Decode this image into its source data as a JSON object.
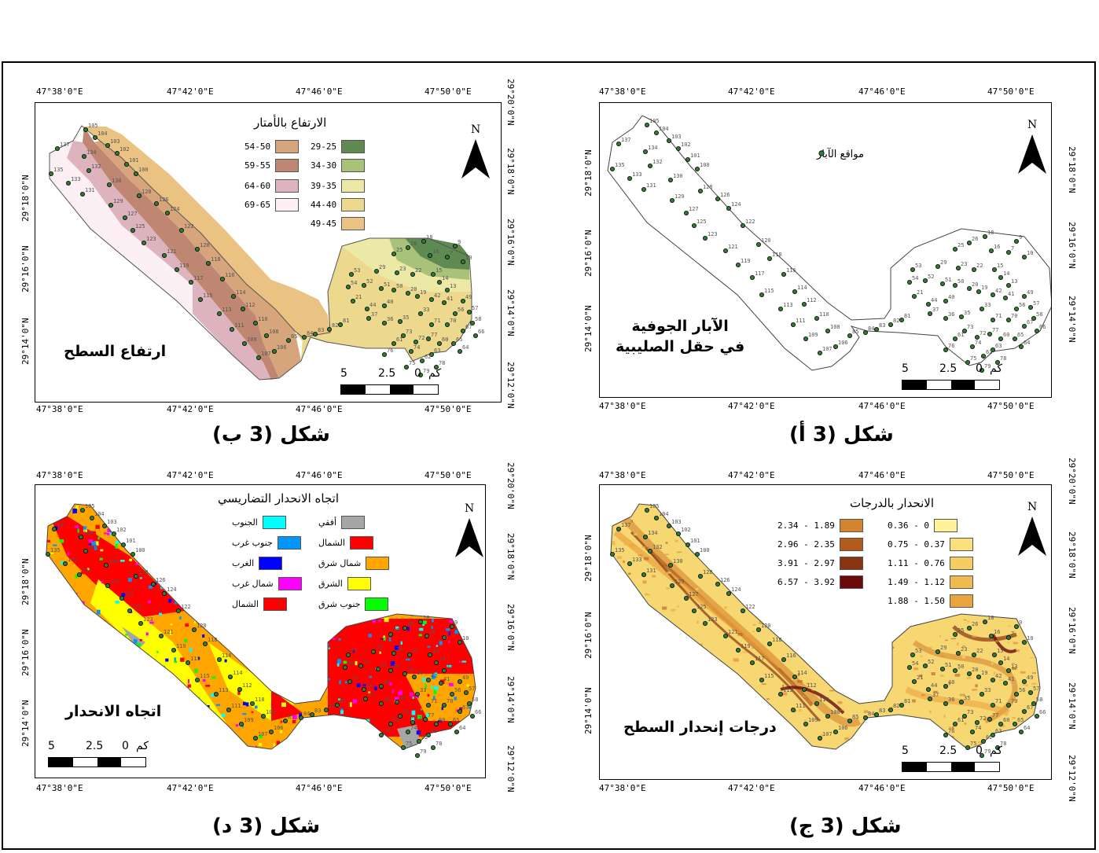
{
  "coords": {
    "lon": [
      "47°38'0\"E",
      "47°42'0\"E",
      "47°46'0\"E",
      "47°50'0\"E"
    ],
    "lat_left": [
      "29°18'0\"N",
      "29°16'0\"N",
      "29°14'0\"N"
    ],
    "lat_right": [
      "29°20'0\"N",
      "29°18'0\"N",
      "29°16'0\"N",
      "29°14'0\"N",
      "29°12'0\"N"
    ]
  },
  "panels": {
    "a": {
      "figure_title": "شكل (3 أ)",
      "caption_line1": "الآبار الجوفية",
      "caption_line2": "في حقل الصليبية",
      "well_legend": "مواقع الآبار",
      "north": "N",
      "scale": {
        "v5": "5",
        "v25": "2.5",
        "v0": "0",
        "unit": "كم"
      }
    },
    "b": {
      "figure_title": "شكل (3 ب)",
      "caption": "ارتفاع السطح",
      "legend_title": "الارتفاع بالأمتار",
      "north": "N",
      "scale": {
        "v5": "5",
        "v25": "2.5",
        "v0": "0",
        "unit": "كم"
      },
      "legend_right": [
        {
          "label": "29-25",
          "color": "#5f8a52"
        },
        {
          "label": "34-30",
          "color": "#a9c27a"
        },
        {
          "label": "39-35",
          "color": "#ece8a6"
        },
        {
          "label": "44-40",
          "color": "#ecd98e"
        },
        {
          "label": "49-45",
          "color": "#eac382"
        }
      ],
      "legend_left": [
        {
          "label": "54-50",
          "color": "#d7a57c"
        },
        {
          "label": "59-55",
          "color": "#bf8771"
        },
        {
          "label": "64-60",
          "color": "#ddb3be"
        },
        {
          "label": "69-65",
          "color": "#fdf0f4"
        }
      ]
    },
    "c": {
      "figure_title": "شكل (3 ج)",
      "caption": "درجات إنحدار السطح",
      "legend_title": "الانحدار بالدرجات",
      "north": "N",
      "scale": {
        "v5": "5",
        "v25": "2.5",
        "v0": "0",
        "unit": "كم"
      },
      "legend_right": [
        {
          "label": "0.36 - 0",
          "color": "#fff39a"
        },
        {
          "label": "0.75 - 0.37",
          "color": "#fbe07b"
        },
        {
          "label": "1.11 - 0.76",
          "color": "#f6cd62"
        },
        {
          "label": "1.49 - 1.12",
          "color": "#f0ba50"
        },
        {
          "label": "1.88 - 1.50",
          "color": "#e9a33f"
        }
      ],
      "legend_left": [
        {
          "label": "2.34 - 1.89",
          "color": "#d5842e"
        },
        {
          "label": "2.96 - 2.35",
          "color": "#b25b1c"
        },
        {
          "label": "3.91 - 2.97",
          "color": "#8a3512"
        },
        {
          "label": "6.57 - 3.92",
          "color": "#6a0a0a"
        }
      ]
    },
    "d": {
      "figure_title": "شكل (3 د)",
      "caption": "اتجاه الانحدار",
      "legend_title": "اتجاه الانحدار التضاريسي",
      "north": "N",
      "scale": {
        "v5": "5",
        "v25": "2.5",
        "v0": "0",
        "unit": "كم"
      },
      "legend_right": [
        {
          "label": "أفقي",
          "color": "#a6a6a6"
        },
        {
          "label": "الشمال",
          "color": "#ff0000"
        },
        {
          "label": "شمال شرق",
          "color": "#ffa500"
        },
        {
          "label": "الشرق",
          "color": "#ffff00"
        },
        {
          "label": "جنوب شرق",
          "color": "#00ff00"
        }
      ],
      "legend_left": [
        {
          "label": "الجنوب",
          "color": "#00ffff"
        },
        {
          "label": "جنوب غرب",
          "color": "#0096ff"
        },
        {
          "label": "الغرب",
          "color": "#0000ff"
        },
        {
          "label": "شمال غرب",
          "color": "#ff00ff"
        },
        {
          "label": "الشمال",
          "color": "#ff0000"
        }
      ]
    }
  },
  "well_labels": [
    "105",
    "104",
    "137",
    "103",
    "134",
    "102",
    "132",
    "135",
    "101",
    "133",
    "100",
    "130",
    "131",
    "128",
    "129",
    "126",
    "127",
    "124",
    "125",
    "122",
    "123",
    "121",
    "120",
    "119",
    "118",
    "117",
    "116",
    "115",
    "114",
    "113",
    "112",
    "111",
    "110",
    "109",
    "108",
    "107",
    "106",
    "85",
    "84",
    "83",
    "82",
    "81",
    "18",
    "26",
    "25",
    "9",
    "16",
    "7",
    "10",
    "53",
    "29",
    "23",
    "22",
    "15",
    "14",
    "13",
    "54",
    "52",
    "51",
    "50",
    "20",
    "19",
    "42",
    "41",
    "49",
    "57",
    "56",
    "58",
    "67",
    "66",
    "21",
    "44",
    "40",
    "37",
    "36",
    "35",
    "33",
    "73",
    "72",
    "71",
    "70",
    "60",
    "65",
    "64",
    "63",
    "62",
    "61",
    "76",
    "75",
    "74",
    "78",
    "79",
    "77"
  ]
}
